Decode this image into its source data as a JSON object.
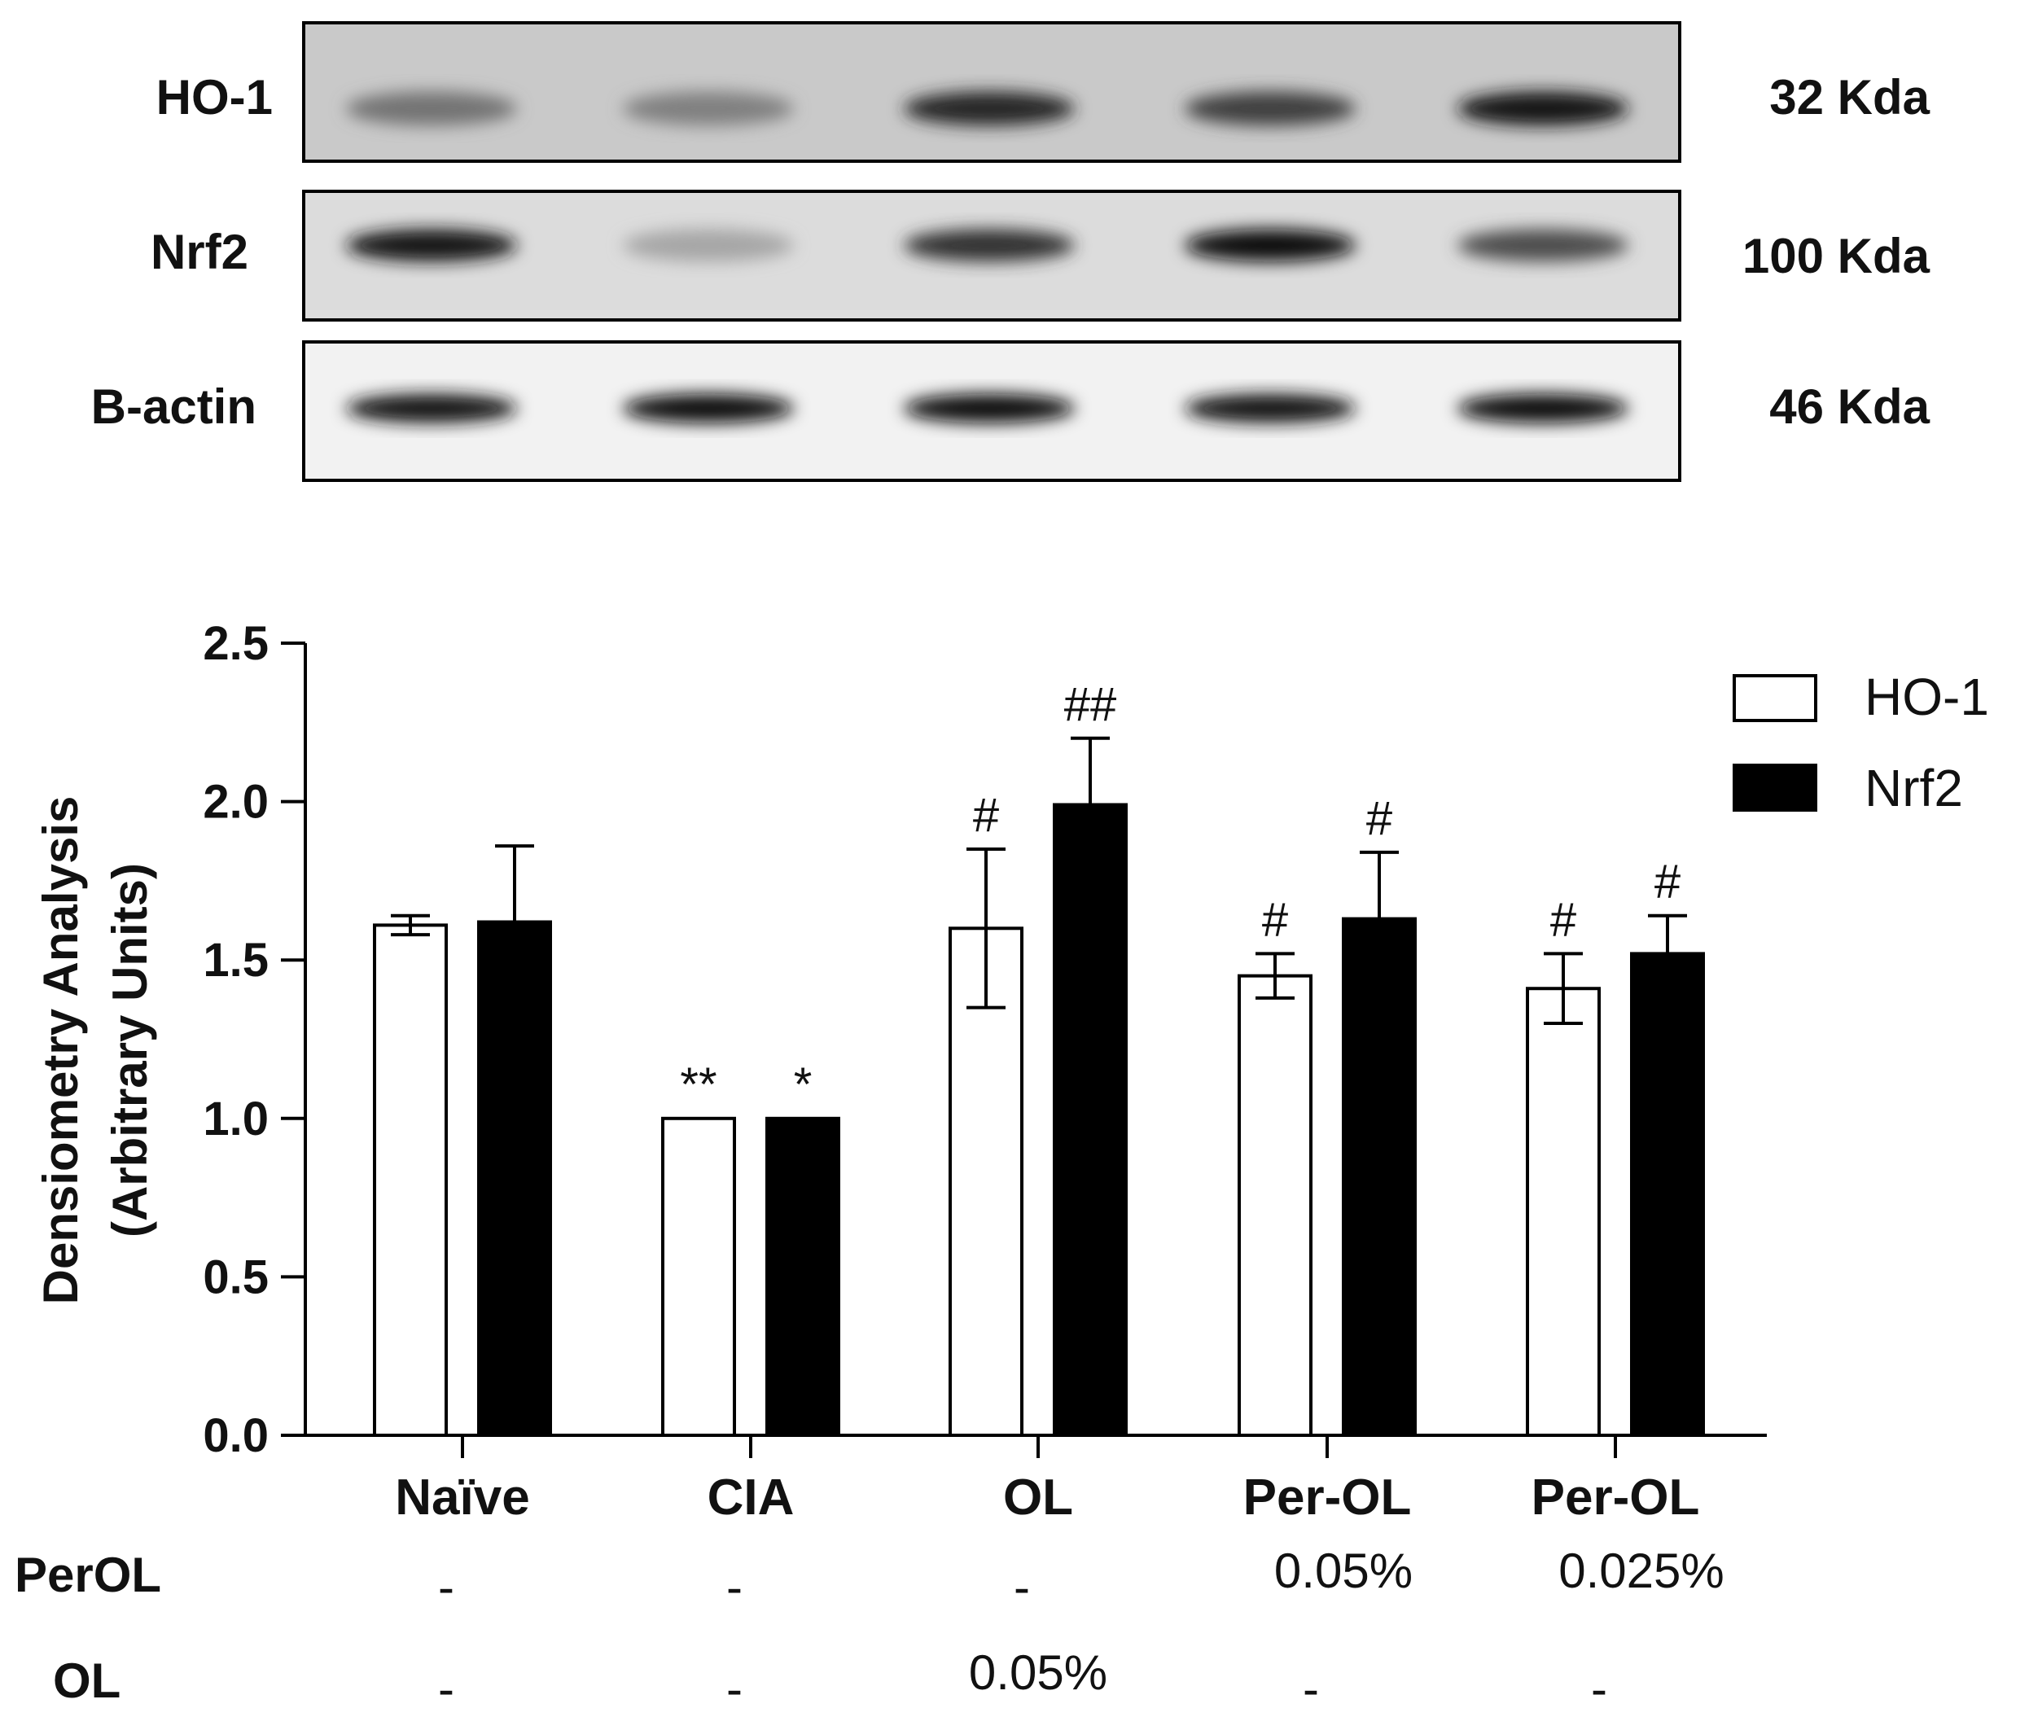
{
  "blot": {
    "rows": [
      {
        "name": "HO-1",
        "weight": "32 Kda",
        "intensities": [
          0.55,
          0.5,
          0.85,
          0.75,
          0.9
        ]
      },
      {
        "name": "Nrf2",
        "weight": "100 Kda",
        "intensities": [
          0.9,
          0.35,
          0.8,
          0.95,
          0.7
        ]
      },
      {
        "name": "B-actin",
        "weight": "46 Kda",
        "intensities": [
          0.9,
          0.95,
          0.95,
          0.9,
          0.95
        ]
      }
    ]
  },
  "chart_data": {
    "type": "bar",
    "ylabel_line1": "Densiometry Analysis",
    "ylabel_line2": "(Arbitrary Units)",
    "ylim": [
      0,
      2.5
    ],
    "yticks": [
      "0.0",
      "0.5",
      "1.0",
      "1.5",
      "2.0",
      "2.5"
    ],
    "categories": [
      "Naïve",
      "CIA",
      "OL",
      "Per-OL",
      "Per-OL"
    ],
    "series": [
      {
        "name": "HO-1",
        "fill": "#ffffff",
        "values": [
          1.61,
          1.0,
          1.6,
          1.45,
          1.41
        ],
        "errors": [
          0.03,
          0.0,
          0.25,
          0.07,
          0.11
        ],
        "annotations": [
          "",
          "**",
          "#",
          "#",
          "#"
        ]
      },
      {
        "name": "Nrf2",
        "fill": "#000000",
        "values": [
          1.62,
          1.0,
          1.99,
          1.63,
          1.52
        ],
        "errors": [
          0.24,
          0.0,
          0.21,
          0.21,
          0.12
        ],
        "annotations": [
          "",
          "*",
          "##",
          "#",
          "#"
        ]
      }
    ],
    "legend_position": "top-right"
  },
  "treatment_table": {
    "rows": [
      {
        "label": "PerOL",
        "values": [
          "-",
          "-",
          "-",
          "0.05%",
          "0.025%"
        ]
      },
      {
        "label": "OL",
        "values": [
          "-",
          "-",
          "0.05%",
          "-",
          "-"
        ]
      }
    ]
  }
}
